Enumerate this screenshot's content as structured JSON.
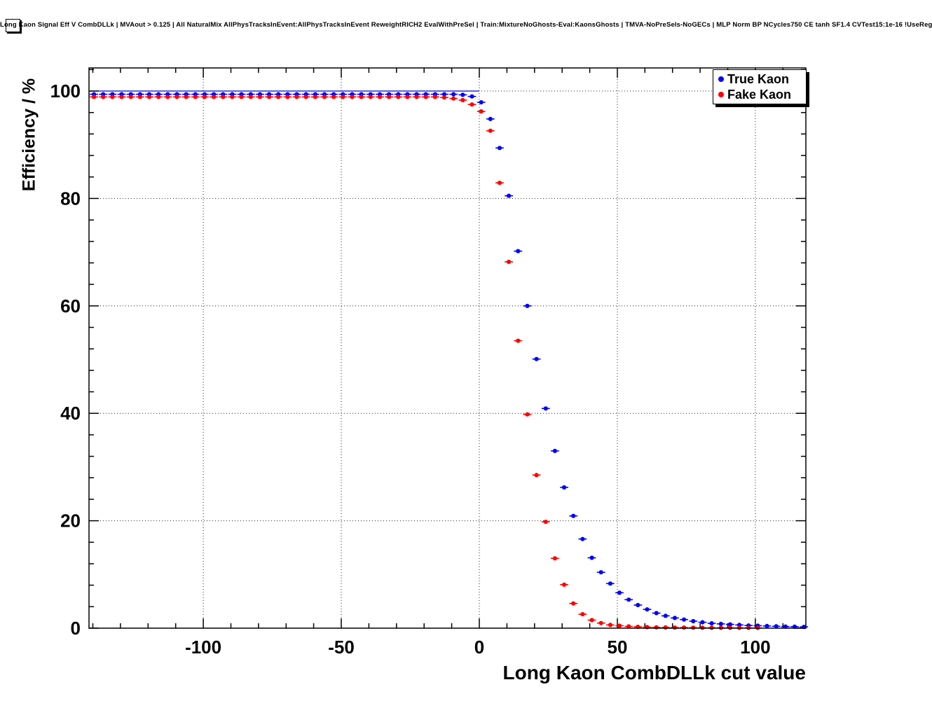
{
  "chart_data": {
    "type": "scatter",
    "title": "Long Kaon Signal Eff V CombDLLk | MVAout > 0.125 | All NaturalMix AllPhysTracksInEvent:AllPhysTracksInEvent ReweightRICH2 EvalWithPreSel | Train:MixtureNoGhosts-Eval:KaonsGhosts | TMVA-NoPreSels-NoGECs | MLP Norm BP NCycles750 CE tanh SF1.4 CVTest15:1e-16 !UseReg",
    "xlabel": "Long Kaon CombDLLk cut value",
    "ylabel": "Efficiency / %",
    "xlim": [
      -141.4,
      118.3
    ],
    "ylim": [
      0,
      104.3
    ],
    "x_ticks": [
      -100,
      -50,
      0,
      50,
      100
    ],
    "y_ticks": [
      0,
      20,
      40,
      60,
      80,
      100
    ],
    "x_minor_step": 10,
    "y_minor_step": 4,
    "grid": "dotted",
    "frame_color": "#000000",
    "background": "#ffffff",
    "ref_line": {
      "y": 100,
      "x_end": 0,
      "color": "#0000cc"
    },
    "legend": {
      "position": "top-right",
      "entries": [
        {
          "label": "True Kaon",
          "color": "#0000ff"
        },
        {
          "label": "Fake Kaon",
          "color": "#ff0000"
        }
      ]
    },
    "series": [
      {
        "name": "True Kaon",
        "color": "#0000ff",
        "marker": "circle",
        "x_start": -139.6,
        "x_step": 3.34,
        "xerr": 1.5,
        "values": [
          99.4,
          99.4,
          99.4,
          99.4,
          99.4,
          99.4,
          99.4,
          99.4,
          99.4,
          99.4,
          99.4,
          99.4,
          99.4,
          99.4,
          99.4,
          99.4,
          99.4,
          99.4,
          99.4,
          99.4,
          99.4,
          99.4,
          99.4,
          99.4,
          99.4,
          99.4,
          99.4,
          99.4,
          99.4,
          99.4,
          99.4,
          99.4,
          99.4,
          99.4,
          99.4,
          99.4,
          99.4,
          99.4,
          99.4,
          99.4,
          99.3,
          99.0,
          97.9,
          94.8,
          89.4,
          80.5,
          70.2,
          60.0,
          50.1,
          40.9,
          33.0,
          26.2,
          20.9,
          16.6,
          13.1,
          10.4,
          8.3,
          6.6,
          5.3,
          4.3,
          3.5,
          2.8,
          2.3,
          1.9,
          1.6,
          1.3,
          1.1,
          0.9,
          0.8,
          0.7,
          0.6,
          0.5,
          0.45,
          0.4,
          0.35,
          0.3,
          0.27,
          0.24
        ]
      },
      {
        "name": "Fake Kaon",
        "color": "#ff0000",
        "marker": "circle",
        "x_start": -139.6,
        "x_step": 3.34,
        "xerr": 1.5,
        "values": [
          98.9,
          98.9,
          98.9,
          98.9,
          98.9,
          98.9,
          98.9,
          98.9,
          98.9,
          98.9,
          98.9,
          98.9,
          98.9,
          98.9,
          98.9,
          98.9,
          98.9,
          98.9,
          98.9,
          98.9,
          98.9,
          98.9,
          98.9,
          98.9,
          98.9,
          98.9,
          98.9,
          98.9,
          98.9,
          98.9,
          98.9,
          98.9,
          98.9,
          98.9,
          98.9,
          98.9,
          98.9,
          98.9,
          98.8,
          98.6,
          98.3,
          97.5,
          96.2,
          92.6,
          82.9,
          68.2,
          53.5,
          39.8,
          28.5,
          19.8,
          13.0,
          8.1,
          4.6,
          2.6,
          1.5,
          0.95,
          0.6,
          0.45,
          0.33,
          0.25,
          0.2,
          0.16,
          0.13,
          0.11,
          0.1,
          0.09,
          0.08,
          0.07,
          0.06,
          0.06,
          0.05,
          0.05,
          0.04
        ]
      }
    ]
  }
}
